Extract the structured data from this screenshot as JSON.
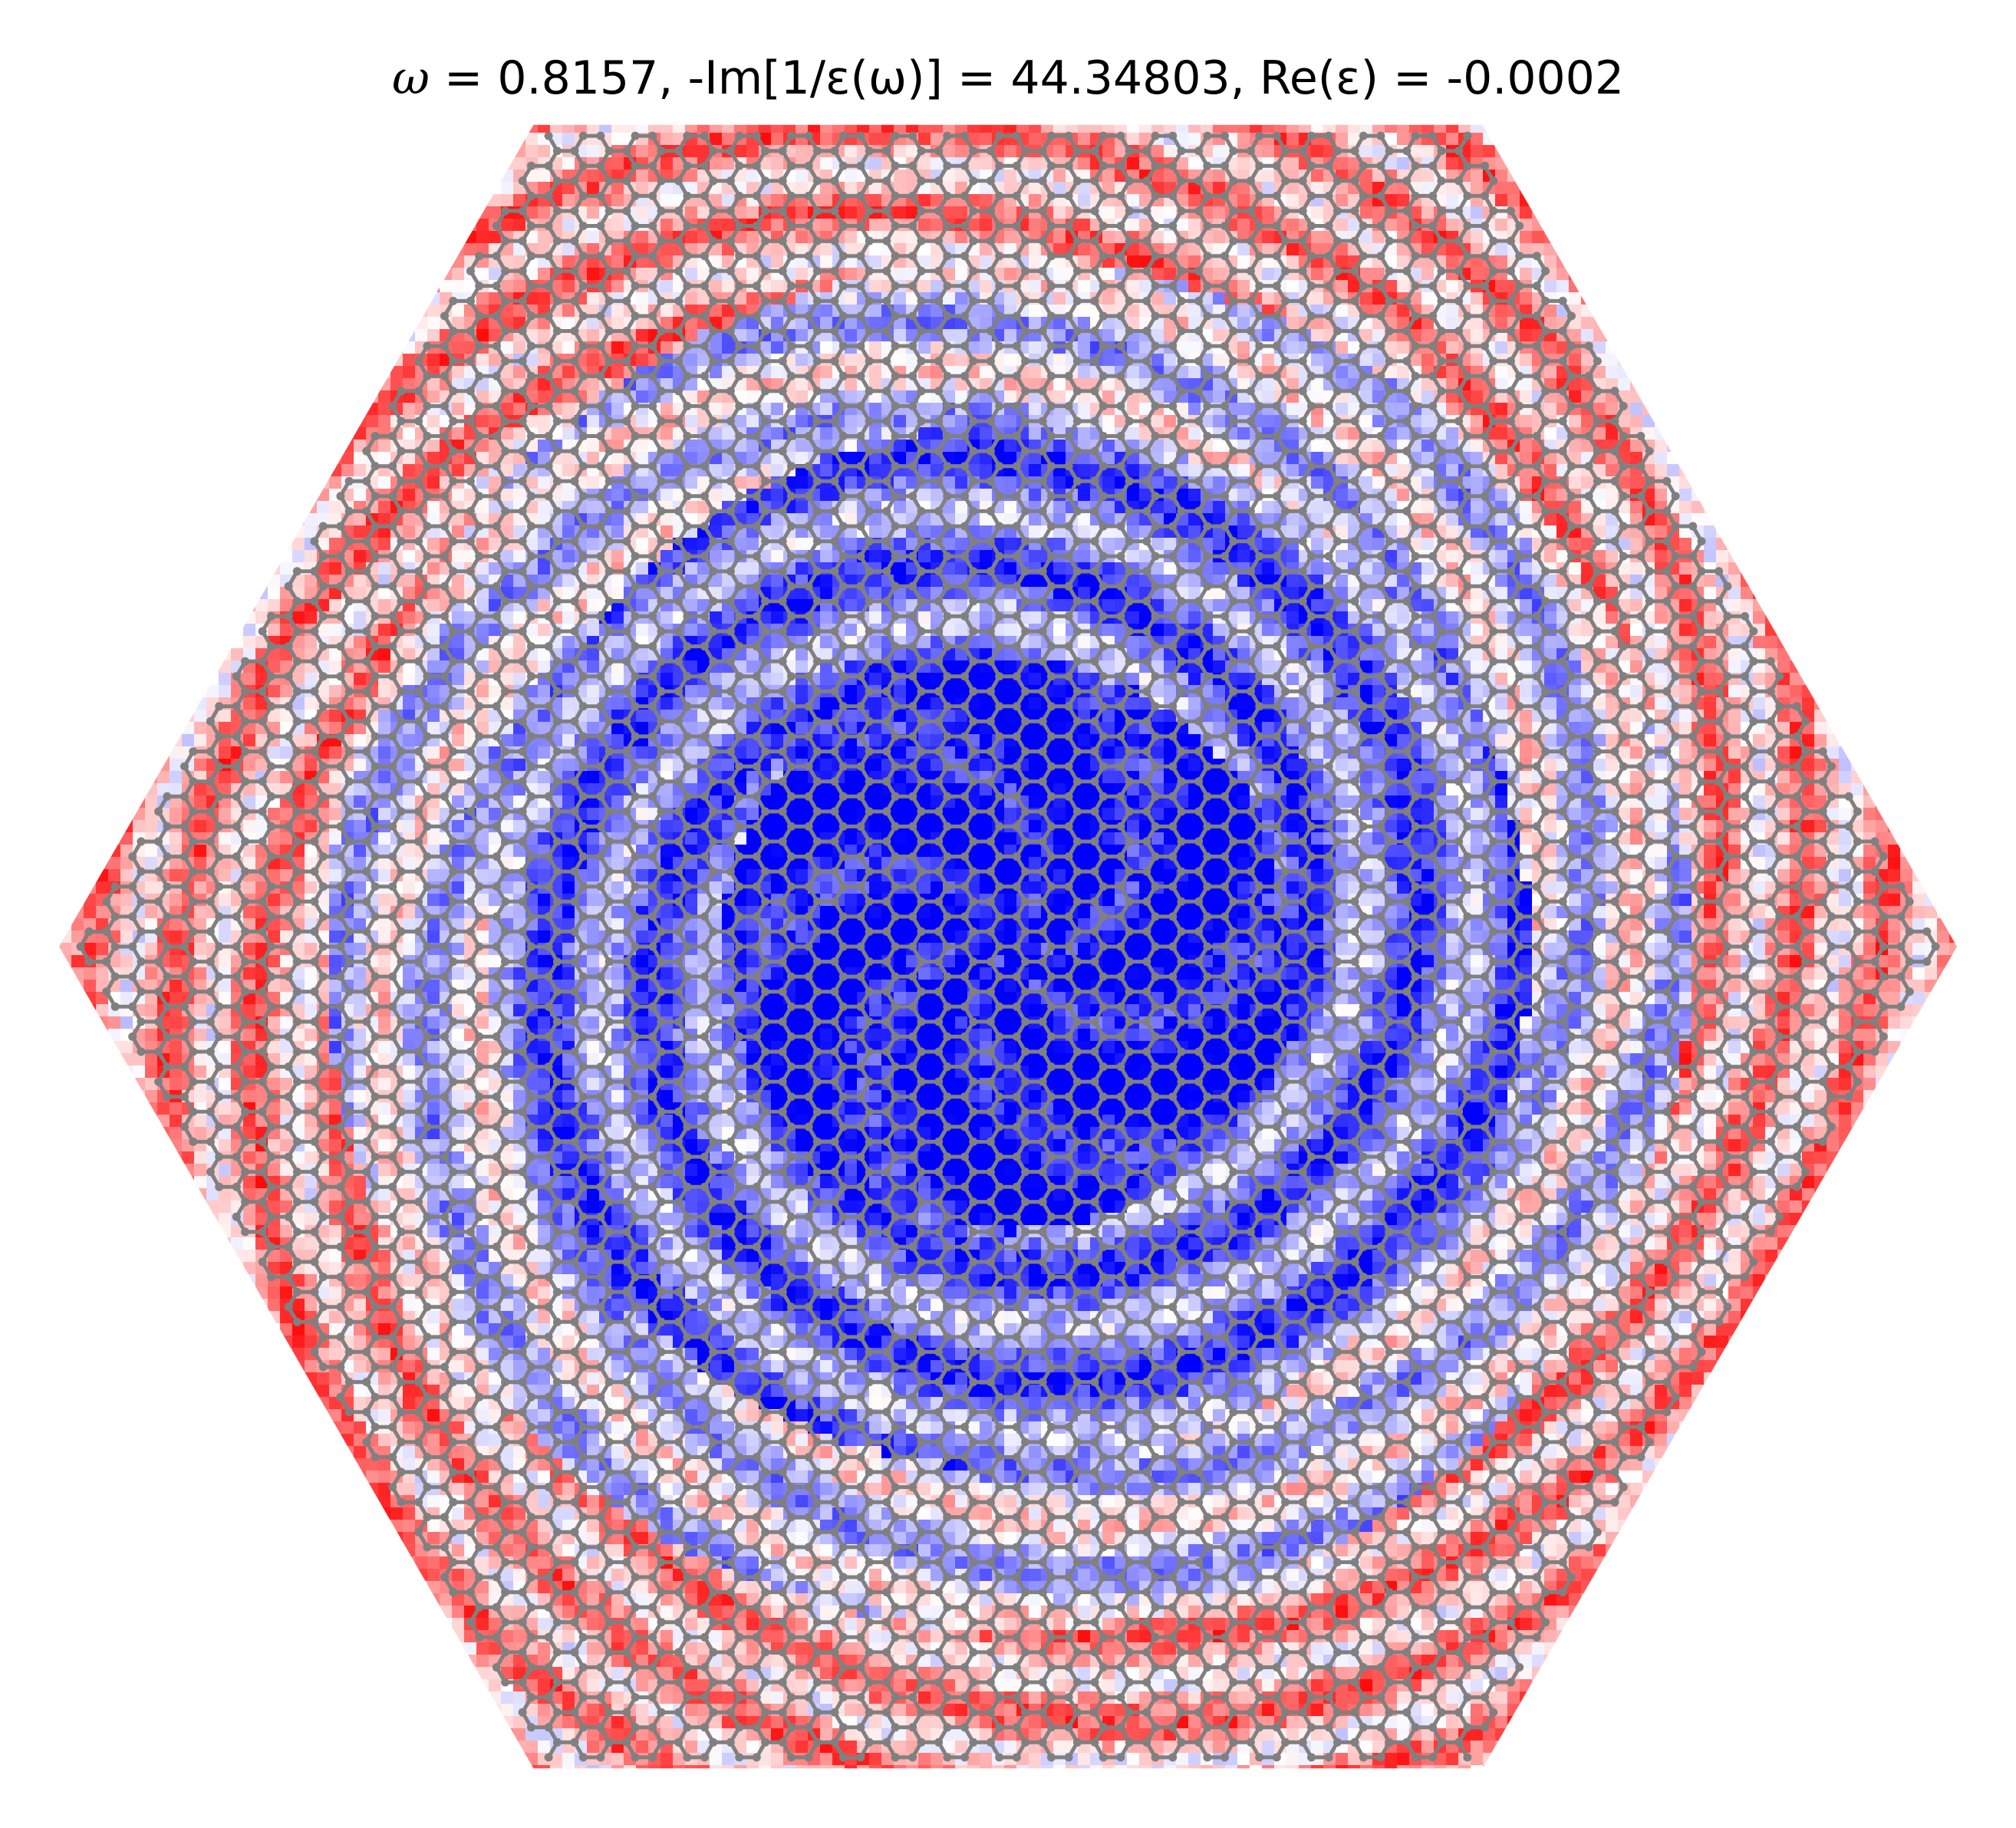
{
  "chart_data": {
    "type": "heatmap",
    "title": {
      "omega_symbol": "ω",
      "omega_value": "0.8157",
      "loss_label": "-Im[1/ε(ω)]",
      "loss_value": "44.34803",
      "re_eps_label": "Re(ε)",
      "re_eps_value": "-0.0002"
    },
    "lattice": "hexagonal graphene flake (honeycomb)",
    "colormap": {
      "negative": "#0000ff",
      "zero": "#ffffff",
      "positive": "#ff0000"
    },
    "lattice_color": "#808080",
    "axes_visible": false,
    "colorbar": false
  }
}
